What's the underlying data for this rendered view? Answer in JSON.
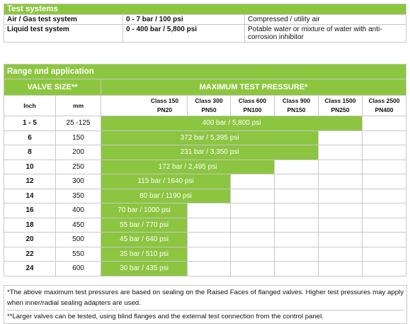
{
  "test_systems": {
    "title": "Test systems",
    "rows": [
      [
        "Air / Gas test system",
        "0 - 7 bar / 100 psi",
        "Compressed / utility air"
      ],
      [
        "Liquid test system",
        "0 - 400 bar / 5,800 psi",
        "Potable water or mixture of water with anti-corrosion inhibitor"
      ]
    ]
  },
  "range": {
    "title": "Range and application",
    "valve_size": "VALVE SIZE**",
    "max_pressure": "MAXIMUM TEST PRESSURE*",
    "inch": "Inch",
    "mm": "mm",
    "classes": [
      [
        "Class 150",
        "PN20"
      ],
      [
        "Class 300",
        "PN50"
      ],
      [
        "Class 600",
        "PN100"
      ],
      [
        "Class 900",
        "PN150"
      ],
      [
        "Class 1500",
        "PN250"
      ],
      [
        "Class 2500",
        "PN400"
      ]
    ],
    "rows": [
      [
        "1 - 5",
        "25 -125",
        "400 bar / 5,800 psi"
      ],
      [
        "6",
        "150",
        "372 bar / 5,395 psi"
      ],
      [
        "8",
        "200",
        "231 bar / 3,350 psi"
      ],
      [
        "10",
        "250",
        "172 bar / 2,495 psi"
      ],
      [
        "12",
        "300",
        "115 bar / 1640 psi"
      ],
      [
        "14",
        "350",
        "80 bar / 1190 psi"
      ],
      [
        "16",
        "400",
        "70 bar / 1000 psi"
      ],
      [
        "18",
        "450",
        "55 bar / 770 psi"
      ],
      [
        "20",
        "500",
        "45 bar / 640 psi"
      ],
      [
        "22",
        "550",
        "35 bar / 510 psi"
      ],
      [
        "24",
        "600",
        "30 bar / 435 psi"
      ]
    ]
  },
  "notes": [
    "*The above maximum test pressures are based on sealing on the Raised Faces of flanged valves. Higher test pressures may apply when inner/radial sealing adapters are used.",
    "**Larger valves can be tested, using blind flanges and the external test connection from the control panel."
  ]
}
